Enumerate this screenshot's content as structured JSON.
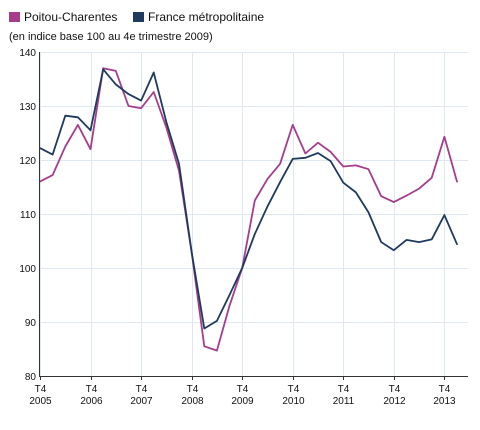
{
  "chart_data": {
    "type": "line",
    "subtitle": "(en indice base 100 au 4e trimestre 2009)",
    "xlabel": "",
    "ylabel": "",
    "ylim": [
      80,
      140
    ],
    "yticks": [
      80,
      90,
      100,
      110,
      120,
      130,
      140
    ],
    "grid": true,
    "legend_position": "top-left",
    "x": [
      2005.0,
      2005.25,
      2005.5,
      2005.75,
      2006.0,
      2006.25,
      2006.5,
      2006.75,
      2007.0,
      2007.25,
      2007.5,
      2007.75,
      2008.0,
      2008.25,
      2008.5,
      2008.75,
      2009.0,
      2009.25,
      2009.5,
      2009.75,
      2010.0,
      2010.25,
      2010.5,
      2010.75,
      2011.0,
      2011.25,
      2011.5,
      2011.75,
      2012.0,
      2012.25,
      2012.5,
      2012.75,
      2013.0,
      2013.25
    ],
    "x_ticks": [
      {
        "x": 2005,
        "q": "T4",
        "year": "2005"
      },
      {
        "x": 2006,
        "q": "T4",
        "year": "2006"
      },
      {
        "x": 2007,
        "q": "T4",
        "year": "2007"
      },
      {
        "x": 2008,
        "q": "T4",
        "year": "2008"
      },
      {
        "x": 2009,
        "q": "T4",
        "year": "2009"
      },
      {
        "x": 2010,
        "q": "T4",
        "year": "2010"
      },
      {
        "x": 2011,
        "q": "T4",
        "year": "2011"
      },
      {
        "x": 2012,
        "q": "T4",
        "year": "2012"
      },
      {
        "x": 2013,
        "q": "T4",
        "year": "2013"
      }
    ],
    "series": [
      {
        "name": "Poitou-Charentes",
        "color": "#a63d8c",
        "values": [
          116.0,
          117.2,
          122.5,
          126.5,
          122.0,
          137.0,
          136.5,
          130.0,
          129.6,
          132.6,
          126.0,
          118.0,
          103.0,
          85.5,
          84.7,
          93.0,
          100.0,
          112.5,
          116.5,
          119.3,
          126.5,
          121.2,
          123.2,
          121.5,
          118.8,
          119.0,
          118.3,
          113.3,
          112.2,
          113.4,
          114.7,
          116.7,
          124.3,
          116.0
        ]
      },
      {
        "name": "France métropolitaine",
        "color": "#1f3a5f",
        "values": [
          122.2,
          121.0,
          128.2,
          127.9,
          125.5,
          136.8,
          134.0,
          132.2,
          131.0,
          136.2,
          127.0,
          119.3,
          103.0,
          88.8,
          90.2,
          95.0,
          100.0,
          106.3,
          111.4,
          115.9,
          120.2,
          120.4,
          121.3,
          119.8,
          115.8,
          114.0,
          110.3,
          104.8,
          103.3,
          105.2,
          104.8,
          105.3,
          109.8,
          104.4
        ]
      }
    ]
  }
}
